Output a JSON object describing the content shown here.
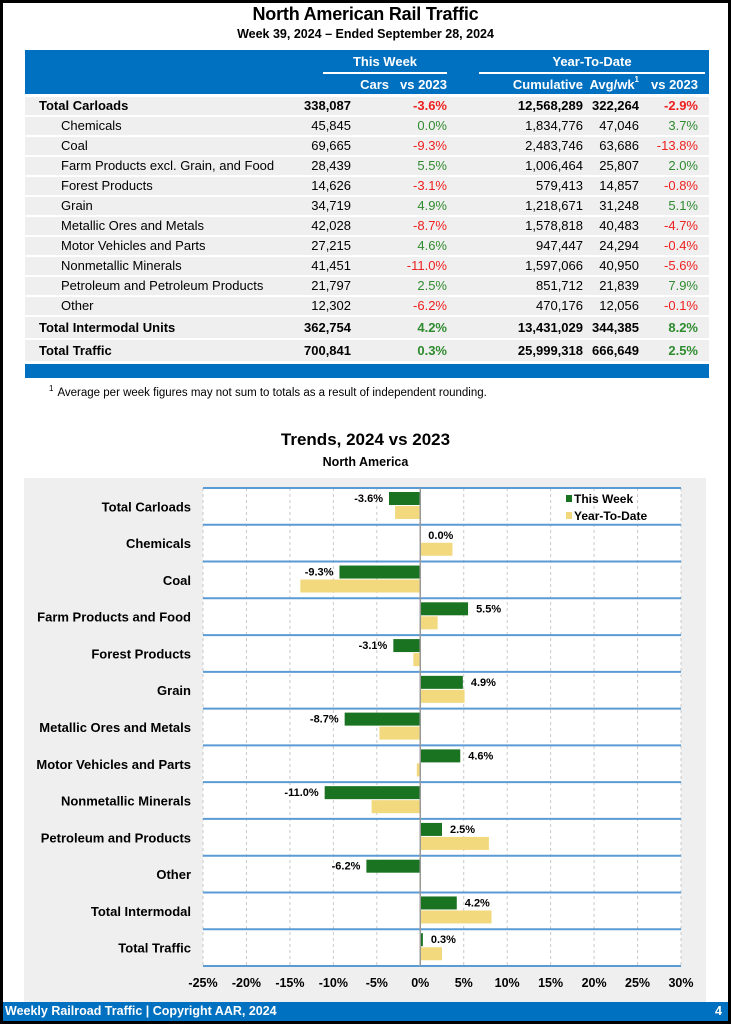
{
  "header": {
    "title": "North American Rail Traffic",
    "subtitle": "Week 39, 2024 – Ended September 28, 2024"
  },
  "table": {
    "group_this_week": "This Week",
    "group_ytd": "Year-To-Date",
    "columns": {
      "cars": "Cars",
      "vs2023_week": "vs 2023",
      "cumulative": "Cumulative",
      "avg_wk": "Avg/wk",
      "avg_wk_footnote_marker": "1",
      "vs2023_ytd": "vs 2023"
    },
    "rows": [
      {
        "label": "Total Carloads",
        "cars": "338,087",
        "week_pct": "-3.6%",
        "cumulative": "12,568,289",
        "avg_wk": "322,264",
        "ytd_pct": "-2.9%",
        "bold": true
      },
      {
        "label": "Chemicals",
        "cars": "45,845",
        "week_pct": "0.0%",
        "cumulative": "1,834,776",
        "avg_wk": "47,046",
        "ytd_pct": "3.7%"
      },
      {
        "label": "Coal",
        "cars": "69,665",
        "week_pct": "-9.3%",
        "cumulative": "2,483,746",
        "avg_wk": "63,686",
        "ytd_pct": "-13.8%"
      },
      {
        "label": "Farm Products excl. Grain, and Food",
        "cars": "28,439",
        "week_pct": "5.5%",
        "cumulative": "1,006,464",
        "avg_wk": "25,807",
        "ytd_pct": "2.0%"
      },
      {
        "label": "Forest Products",
        "cars": "14,626",
        "week_pct": "-3.1%",
        "cumulative": "579,413",
        "avg_wk": "14,857",
        "ytd_pct": "-0.8%"
      },
      {
        "label": "Grain",
        "cars": "34,719",
        "week_pct": "4.9%",
        "cumulative": "1,218,671",
        "avg_wk": "31,248",
        "ytd_pct": "5.1%"
      },
      {
        "label": "Metallic Ores and Metals",
        "cars": "42,028",
        "week_pct": "-8.7%",
        "cumulative": "1,578,818",
        "avg_wk": "40,483",
        "ytd_pct": "-4.7%"
      },
      {
        "label": "Motor Vehicles and Parts",
        "cars": "27,215",
        "week_pct": "4.6%",
        "cumulative": "947,447",
        "avg_wk": "24,294",
        "ytd_pct": "-0.4%"
      },
      {
        "label": "Nonmetallic Minerals",
        "cars": "41,451",
        "week_pct": "-11.0%",
        "cumulative": "1,597,066",
        "avg_wk": "40,950",
        "ytd_pct": "-5.6%"
      },
      {
        "label": "Petroleum and Petroleum Products",
        "cars": "21,797",
        "week_pct": "2.5%",
        "cumulative": "851,712",
        "avg_wk": "21,839",
        "ytd_pct": "7.9%"
      },
      {
        "label": "Other",
        "cars": "12,302",
        "week_pct": "-6.2%",
        "cumulative": "470,176",
        "avg_wk": "12,056",
        "ytd_pct": "-0.1%"
      },
      {
        "label": "Total Intermodal Units",
        "cars": "362,754",
        "week_pct": "4.2%",
        "cumulative": "13,431,029",
        "avg_wk": "344,385",
        "ytd_pct": "8.2%",
        "bold": true
      },
      {
        "label": "Total Traffic",
        "cars": "700,841",
        "week_pct": "0.3%",
        "cumulative": "25,999,318",
        "avg_wk": "666,649",
        "ytd_pct": "2.5%",
        "bold": true
      }
    ],
    "footnote_marker": "1",
    "footnote": "Average per week figures may not sum to totals as a result of independent rounding."
  },
  "colors": {
    "brand_blue": "#0070c0",
    "positive": "#2e8b2e",
    "negative": "#ee2020",
    "this_week_bar": "#1a7320",
    "ytd_bar": "#f2d97e",
    "row_separator": "#5b9bd5"
  },
  "chart_data": {
    "type": "bar",
    "orientation": "horizontal",
    "title": "Trends, 2024 vs 2023",
    "subtitle": "North America",
    "xlabel": "",
    "ylabel": "",
    "xlim": [
      -25,
      30
    ],
    "x_ticks": [
      -25,
      -20,
      -15,
      -10,
      -5,
      0,
      5,
      10,
      15,
      20,
      25,
      30
    ],
    "x_tick_labels": [
      "-25%",
      "-20%",
      "-15%",
      "-10%",
      "-5%",
      "0%",
      "5%",
      "10%",
      "15%",
      "20%",
      "25%",
      "30%"
    ],
    "grid": true,
    "legend_position": "top-right",
    "categories": [
      "Total Carloads",
      "Chemicals",
      "Coal",
      "Farm Products and Food",
      "Forest Products",
      "Grain",
      "Metallic Ores and Metals",
      "Motor Vehicles and Parts",
      "Nonmetallic Minerals",
      "Petroleum and Products",
      "Other",
      "Total Intermodal",
      "Total Traffic"
    ],
    "series": [
      {
        "name": "This Week",
        "values": [
          -3.6,
          0.0,
          -9.3,
          5.5,
          -3.1,
          4.9,
          -8.7,
          4.6,
          -11.0,
          2.5,
          -6.2,
          4.2,
          0.3
        ],
        "labels": [
          "-3.6%",
          "0.0%",
          "-9.3%",
          "5.5%",
          "-3.1%",
          "4.9%",
          "-8.7%",
          "4.6%",
          "-11.0%",
          "2.5%",
          "-6.2%",
          "4.2%",
          "0.3%"
        ]
      },
      {
        "name": "Year-To-Date",
        "values": [
          -2.9,
          3.7,
          -13.8,
          2.0,
          -0.8,
          5.1,
          -4.7,
          -0.4,
          -5.6,
          7.9,
          -0.1,
          8.2,
          2.5
        ]
      }
    ]
  },
  "footer": {
    "text": "Weekly Railroad Traffic | Copyright AAR, 2024",
    "page_number": "4"
  }
}
